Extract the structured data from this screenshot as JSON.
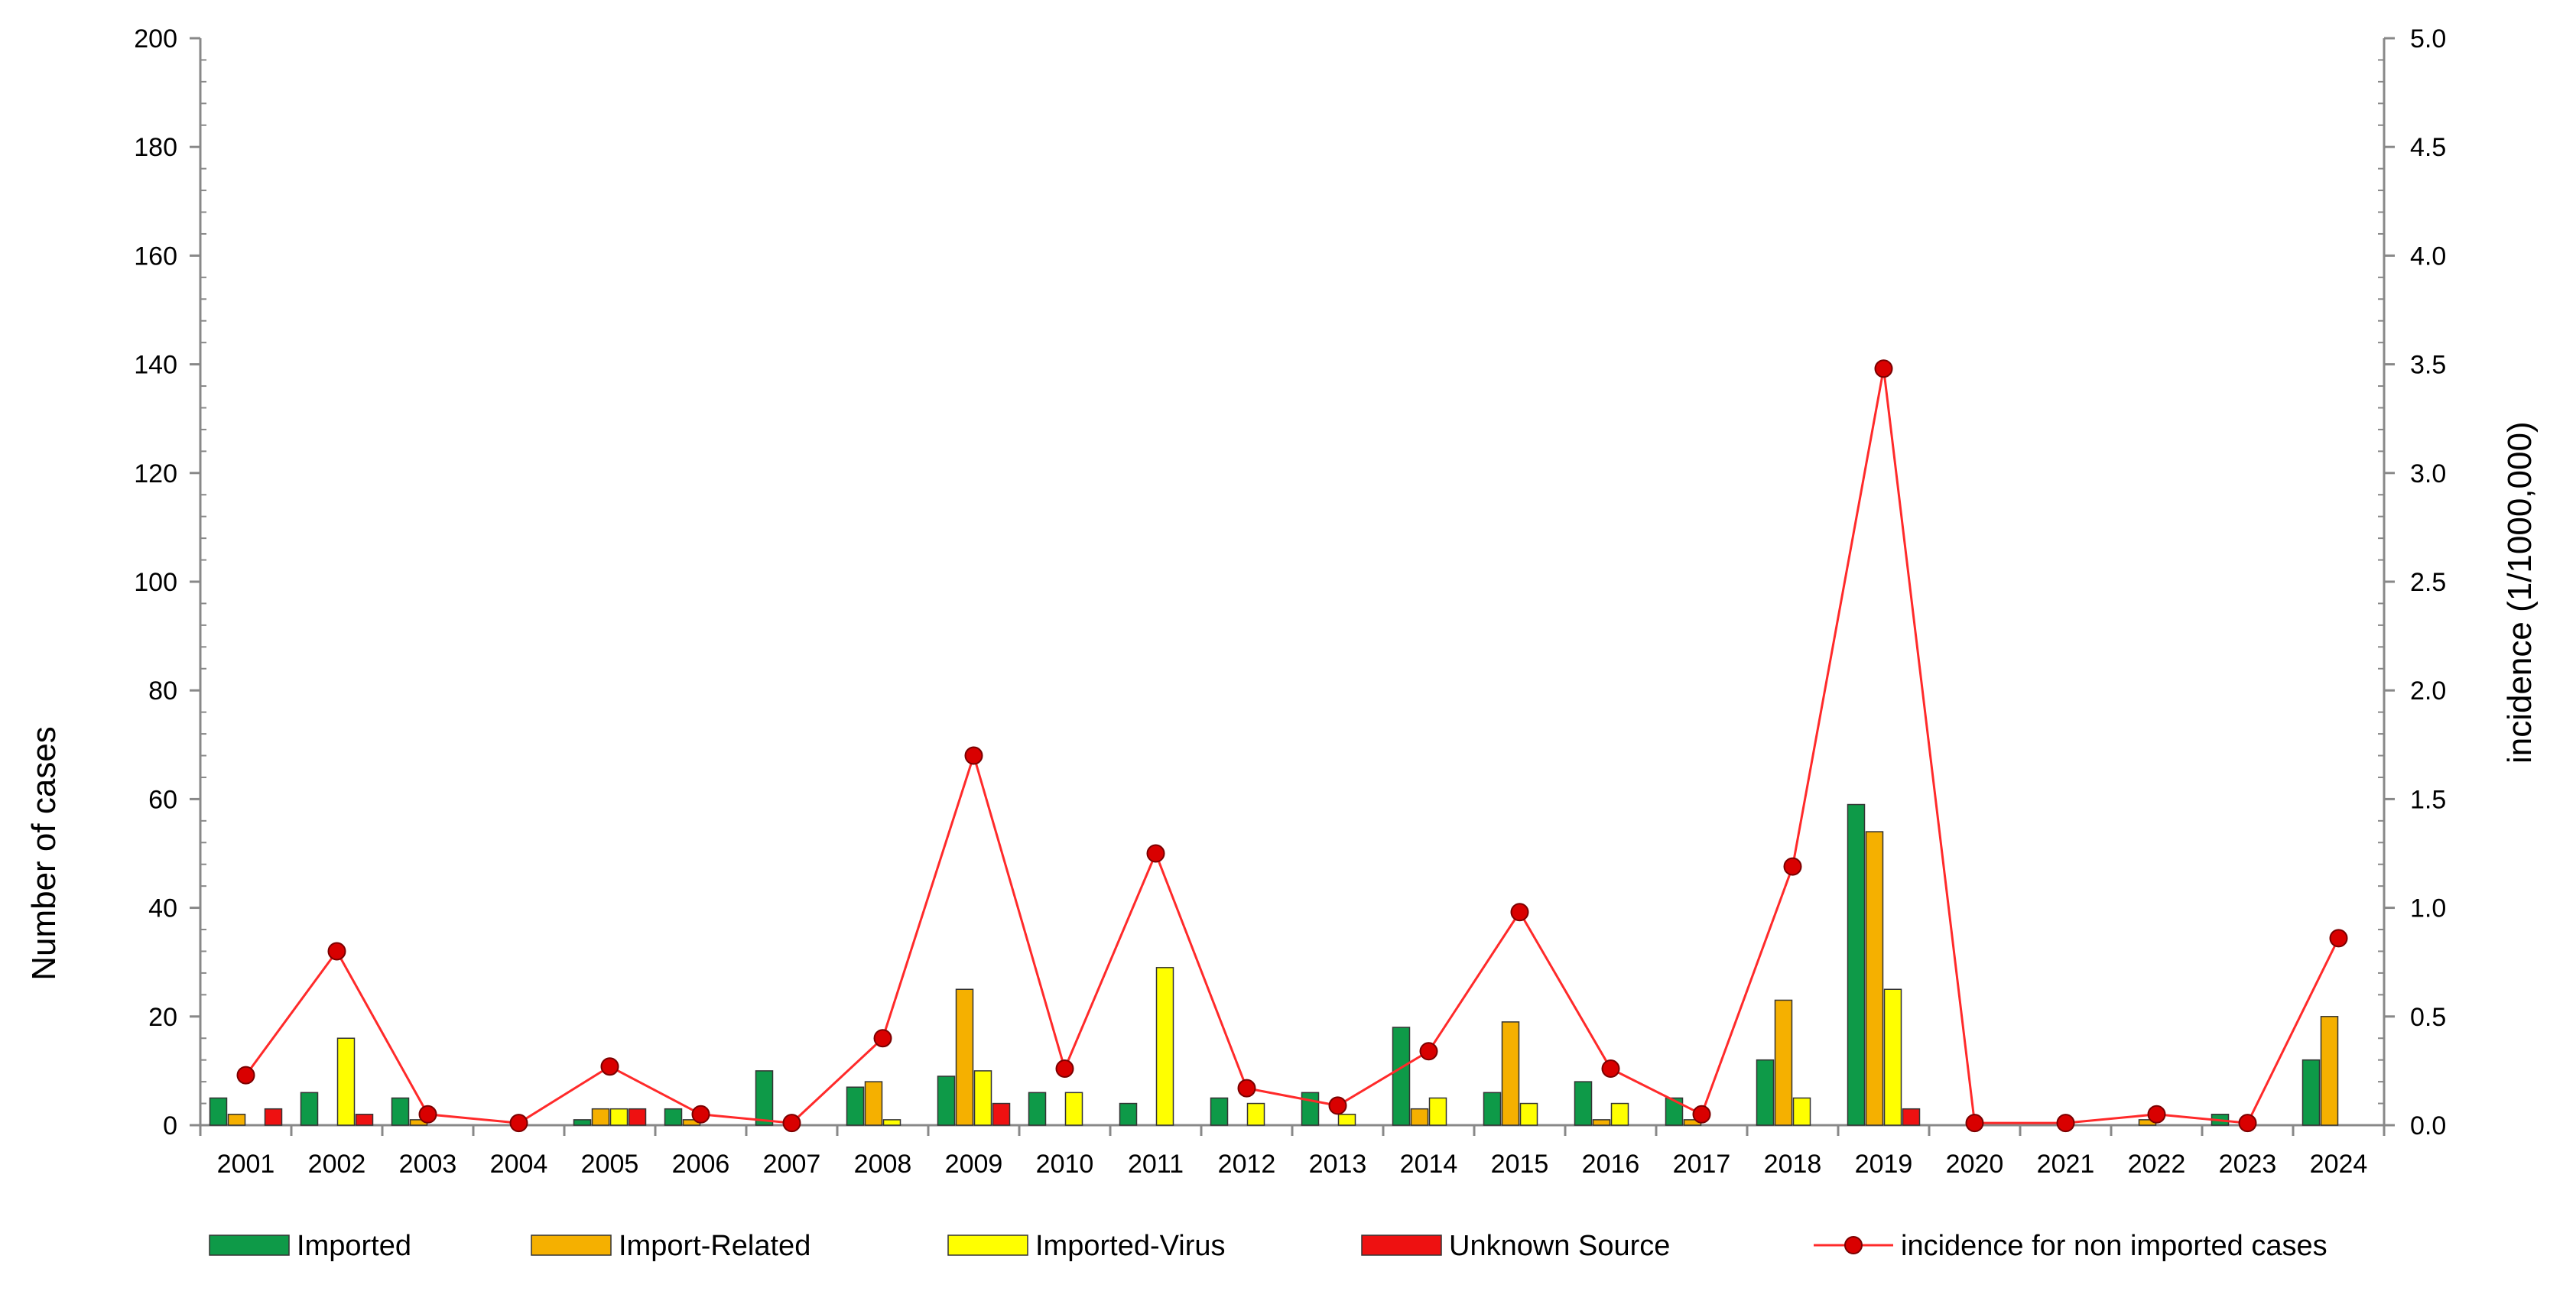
{
  "chart_data": {
    "type": "bar",
    "categories": [
      "2001",
      "2002",
      "2003",
      "2004",
      "2005",
      "2006",
      "2007",
      "2008",
      "2009",
      "2010",
      "2011",
      "2012",
      "2013",
      "2014",
      "2015",
      "2016",
      "2017",
      "2018",
      "2019",
      "2020",
      "2021",
      "2022",
      "2023",
      "2024"
    ],
    "ylabel": "Number of cases",
    "y2label": "incidence (1/1000,000)",
    "ylim": [
      0,
      200
    ],
    "y2lim": [
      0,
      5.0
    ],
    "yticks": [
      "0",
      "20",
      "40",
      "60",
      "80",
      "100",
      "120",
      "140",
      "160",
      "180",
      "200"
    ],
    "y2ticks": [
      "0.0",
      "0.5",
      "1.0",
      "1.5",
      "2.0",
      "2.5",
      "3.0",
      "3.5",
      "4.0",
      "4.5",
      "5.0"
    ],
    "grid": false,
    "legend_position": "bottom",
    "series": [
      {
        "name": "Imported",
        "color": "#0e9a48",
        "values": [
          5,
          6,
          5,
          0,
          1,
          3,
          10,
          7,
          9,
          6,
          4,
          5,
          6,
          18,
          6,
          8,
          5,
          12,
          59,
          0,
          0,
          0,
          2,
          12
        ]
      },
      {
        "name": "Import-Related",
        "color": "#f5b000",
        "values": [
          2,
          0,
          1,
          0,
          3,
          1,
          0,
          8,
          25,
          0,
          0,
          0,
          0,
          3,
          19,
          1,
          1,
          23,
          54,
          0,
          0,
          1,
          0,
          20
        ]
      },
      {
        "name": "Imported-Virus",
        "color": "#ffff00",
        "values": [
          0,
          16,
          0,
          0,
          3,
          0,
          0,
          1,
          10,
          6,
          29,
          4,
          2,
          5,
          4,
          4,
          0,
          5,
          25,
          0,
          0,
          0,
          0,
          0
        ]
      },
      {
        "name": "Unknown Source",
        "color": "#ee1111",
        "values": [
          3,
          2,
          0,
          0,
          3,
          0,
          0,
          0,
          4,
          0,
          0,
          0,
          0,
          0,
          0,
          0,
          0,
          0,
          3,
          0,
          0,
          0,
          0,
          0
        ]
      }
    ],
    "line_series": {
      "name": "incidence for non imported cases",
      "color": "#ff2a2a",
      "axis": "secondary",
      "values": [
        0.23,
        0.8,
        0.05,
        0.01,
        0.27,
        0.05,
        0.01,
        0.4,
        1.7,
        0.26,
        1.25,
        0.17,
        0.09,
        0.34,
        0.98,
        0.26,
        0.05,
        1.19,
        3.48,
        0.01,
        0.01,
        0.05,
        0.01,
        0.86
      ]
    }
  }
}
